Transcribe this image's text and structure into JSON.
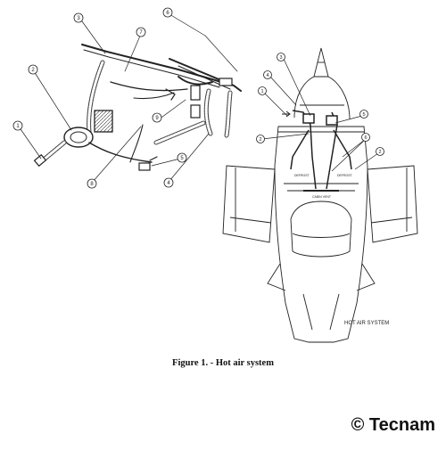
{
  "figure": {
    "caption": "Figure 1. - Hot air system",
    "copyright": "© Tecnam"
  },
  "left_callouts": [
    "3",
    "6",
    "7",
    "2",
    "1",
    "9",
    "8",
    "5",
    "4"
  ],
  "right_callouts": [
    "3",
    "4",
    "1",
    "5",
    "2",
    "6",
    "2"
  ],
  "aircraft_labels": {
    "system_title": "HOT AIR SYSTEM",
    "cabin_vent": "CABIN VENT",
    "left_duct": "DEFROST",
    "right_duct": "DEFROST"
  }
}
